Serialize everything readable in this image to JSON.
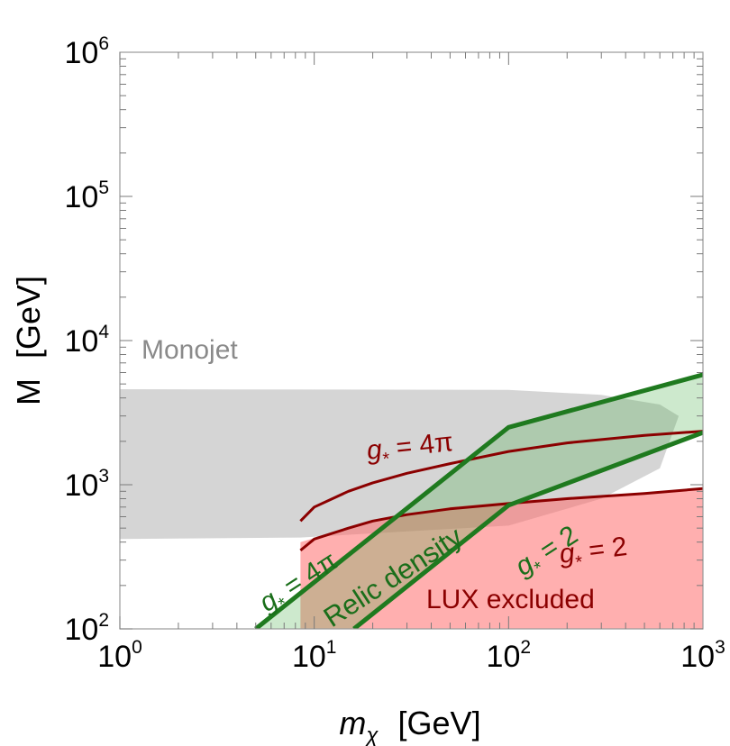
{
  "chart_data": {
    "type": "area",
    "xlabel": {
      "symbol": "m",
      "subscript": "χ",
      "unit": "[GeV]"
    },
    "ylabel": {
      "symbol": "M",
      "unit": "[GeV]"
    },
    "x_scale": "log",
    "y_scale": "log",
    "xlim": [
      1,
      1000
    ],
    "ylim": [
      100,
      1000000
    ],
    "x_ticks": [
      {
        "value": 1,
        "base": "10",
        "exp": "0"
      },
      {
        "value": 10,
        "base": "10",
        "exp": "1"
      },
      {
        "value": 100,
        "base": "10",
        "exp": "2"
      },
      {
        "value": 1000,
        "base": "10",
        "exp": "3"
      }
    ],
    "y_ticks": [
      {
        "value": 100,
        "base": "10",
        "exp": "2"
      },
      {
        "value": 1000,
        "base": "10",
        "exp": "3"
      },
      {
        "value": 10000,
        "base": "10",
        "exp": "4"
      },
      {
        "value": 100000,
        "base": "10",
        "exp": "5"
      },
      {
        "value": 1000000,
        "base": "10",
        "exp": "6"
      }
    ],
    "regions": [
      {
        "name": "Monojet",
        "color": "#9a9a9a",
        "upper_boundary": {
          "x": [
            1,
            100,
            300,
            600,
            750
          ],
          "y": [
            4600,
            4550,
            4200,
            3600,
            3000
          ]
        },
        "lower_boundary": {
          "x": [
            1,
            8.5,
            100,
            300,
            600,
            750
          ],
          "y": [
            420,
            430,
            520,
            800,
            1300,
            3000
          ]
        }
      },
      {
        "name": "LUX excluded",
        "color": "#ff6e6e",
        "x_min": 8.5,
        "boundary": {
          "x": [
            8.5,
            20,
            50,
            100,
            200,
            500,
            1000
          ],
          "y": [
            400,
            560,
            700,
            760,
            820,
            880,
            940
          ]
        }
      },
      {
        "name": "Relic density",
        "color": "#2e8b2e",
        "band_lower": {
          "x": [
            16,
            100,
            1000
          ],
          "y": [
            100,
            720,
            2300
          ]
        },
        "band_upper": {
          "x": [
            5,
            100,
            1000
          ],
          "y": [
            100,
            2500,
            5800
          ]
        }
      }
    ],
    "series": [
      {
        "name": "g* = 4π (contact)",
        "color": "#8b0000",
        "x": [
          8.5,
          10,
          15,
          20,
          30,
          50,
          100,
          200,
          500,
          1000
        ],
        "y": [
          560,
          700,
          900,
          1030,
          1200,
          1400,
          1700,
          1950,
          2200,
          2350
        ]
      },
      {
        "name": "g* = 2 (contact)",
        "color": "#8b0000",
        "x": [
          8.5,
          10,
          15,
          20,
          30,
          50,
          100,
          200,
          500,
          1000
        ],
        "y": [
          350,
          420,
          500,
          560,
          620,
          680,
          740,
          800,
          870,
          940
        ]
      },
      {
        "name": "g* = 4π (relic)",
        "color": "#1f7a1f",
        "x": [
          5,
          100,
          1000
        ],
        "y": [
          100,
          2500,
          5800
        ]
      },
      {
        "name": "g* = 2 (relic)",
        "color": "#1f7a1f",
        "x": [
          16,
          100,
          1000
        ],
        "y": [
          100,
          720,
          2300
        ]
      }
    ],
    "annotations": {
      "monojet": "Monojet",
      "lux": "LUX excluded",
      "relic": "Relic density",
      "g_star": "g",
      "g_sub": "*",
      "eq_4pi": " = 4π",
      "eq_2": " = 2"
    },
    "colors": {
      "monojet_fill": "#9a9a9a",
      "monojet_text": "#8a8a8a",
      "lux_fill": "#ff6e6e",
      "dark_red": "#8b0000",
      "relic_line": "#1f7a1f",
      "relic_fill": "#4caf4c"
    }
  }
}
